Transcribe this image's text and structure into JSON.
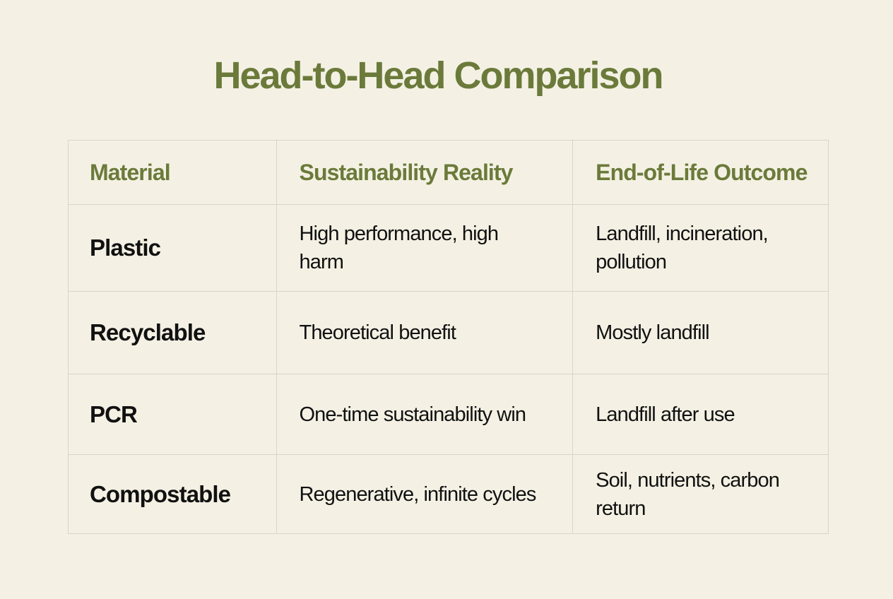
{
  "title": "Head-to-Head Comparison",
  "colors": {
    "background": "#f4f1e4",
    "accent": "#6b7a3a",
    "border": "#d8d4c6"
  },
  "table": {
    "headers": [
      "Material",
      "Sustainability Reality",
      "End-of-Life Outcome"
    ],
    "rows": [
      [
        "Plastic",
        "High performance, high harm",
        "Landfill, incineration, pollution"
      ],
      [
        "Recyclable",
        "Theoretical benefit",
        "Mostly landfill"
      ],
      [
        "PCR",
        "One-time sustainability win",
        "Landfill after use"
      ],
      [
        "Compostable",
        "Regenerative, infinite cycles",
        "Soil, nutrients, carbon return"
      ]
    ]
  }
}
